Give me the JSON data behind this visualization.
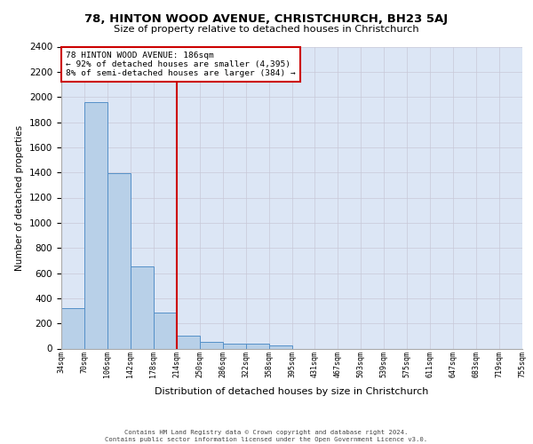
{
  "title1": "78, HINTON WOOD AVENUE, CHRISTCHURCH, BH23 5AJ",
  "title2": "Size of property relative to detached houses in Christchurch",
  "xlabel": "Distribution of detached houses by size in Christchurch",
  "ylabel": "Number of detached properties",
  "bin_labels": [
    "34sqm",
    "70sqm",
    "106sqm",
    "142sqm",
    "178sqm",
    "214sqm",
    "250sqm",
    "286sqm",
    "322sqm",
    "358sqm",
    "395sqm",
    "431sqm",
    "467sqm",
    "503sqm",
    "539sqm",
    "575sqm",
    "611sqm",
    "647sqm",
    "683sqm",
    "719sqm",
    "755sqm"
  ],
  "bar_heights": [
    320,
    1960,
    1395,
    650,
    285,
    105,
    50,
    40,
    40,
    25,
    0,
    0,
    0,
    0,
    0,
    0,
    0,
    0,
    0,
    0
  ],
  "bar_color": "#b8d0e8",
  "bar_edge_color": "#5590c8",
  "grid_color": "#c8c8d8",
  "background_color": "#dce6f5",
  "vline_color": "#cc0000",
  "annotation_text": "78 HINTON WOOD AVENUE: 186sqm\n← 92% of detached houses are smaller (4,395)\n8% of semi-detached houses are larger (384) →",
  "annotation_box_edgecolor": "#cc0000",
  "ylim": [
    0,
    2400
  ],
  "yticks": [
    0,
    200,
    400,
    600,
    800,
    1000,
    1200,
    1400,
    1600,
    1800,
    2000,
    2200,
    2400
  ],
  "footer1": "Contains HM Land Registry data © Crown copyright and database right 2024.",
  "footer2": "Contains public sector information licensed under the Open Government Licence v3.0."
}
